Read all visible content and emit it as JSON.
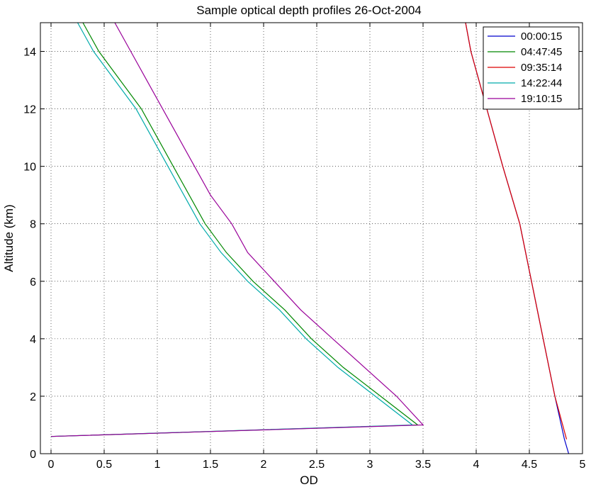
{
  "chart_data": {
    "type": "line",
    "title": "Sample optical depth profiles 26-Oct-2004",
    "xlabel": "OD",
    "ylabel": "Altitude (km)",
    "xlim": [
      -0.1,
      5
    ],
    "ylim": [
      0,
      15
    ],
    "x_ticks": [
      0,
      0.5,
      1,
      1.5,
      2,
      2.5,
      3,
      3.5,
      4,
      4.5,
      5
    ],
    "x_tick_labels": [
      "0",
      "0.5",
      "1",
      "1.5",
      "2",
      "2.5",
      "3",
      "3.5",
      "4",
      "4.5",
      "5"
    ],
    "y_ticks": [
      0,
      2,
      4,
      6,
      8,
      10,
      12,
      14
    ],
    "y_tick_labels": [
      "0",
      "2",
      "4",
      "6",
      "8",
      "10",
      "12",
      "14"
    ],
    "grid": true,
    "legend_position": "top-right",
    "series": [
      {
        "name": "00:00:15",
        "color": "#0000cc",
        "points": [
          [
            4.87,
            0.0
          ],
          [
            4.83,
            0.5
          ],
          [
            4.74,
            2.0
          ],
          [
            4.63,
            4.0
          ],
          [
            4.52,
            6.0
          ],
          [
            4.41,
            8.0
          ],
          [
            4.25,
            10.0
          ],
          [
            4.1,
            12.0
          ],
          [
            3.95,
            14.0
          ],
          [
            3.9,
            15.0
          ]
        ]
      },
      {
        "name": "04:47:45",
        "color": "#008800",
        "points": [
          [
            0.0,
            0.6
          ],
          [
            3.45,
            1.0
          ],
          [
            3.1,
            2.0
          ],
          [
            2.75,
            3.0
          ],
          [
            2.45,
            4.0
          ],
          [
            2.2,
            5.0
          ],
          [
            1.9,
            6.0
          ],
          [
            1.65,
            7.0
          ],
          [
            1.45,
            8.0
          ],
          [
            1.3,
            9.0
          ],
          [
            1.15,
            10.0
          ],
          [
            1.0,
            11.0
          ],
          [
            0.85,
            12.0
          ],
          [
            0.65,
            13.0
          ],
          [
            0.45,
            14.0
          ],
          [
            0.3,
            15.0
          ]
        ]
      },
      {
        "name": "09:35:14",
        "color": "#dd0000",
        "points": [
          [
            4.85,
            0.5
          ],
          [
            4.74,
            2.0
          ],
          [
            4.63,
            4.0
          ],
          [
            4.52,
            6.0
          ],
          [
            4.41,
            8.0
          ],
          [
            4.25,
            10.0
          ],
          [
            4.1,
            12.0
          ],
          [
            3.95,
            14.0
          ],
          [
            3.9,
            15.0
          ]
        ]
      },
      {
        "name": "14:22:44",
        "color": "#00aaaa",
        "points": [
          [
            0.0,
            0.6
          ],
          [
            3.4,
            1.0
          ],
          [
            3.05,
            2.0
          ],
          [
            2.7,
            3.0
          ],
          [
            2.4,
            4.0
          ],
          [
            2.15,
            5.0
          ],
          [
            1.85,
            6.0
          ],
          [
            1.6,
            7.0
          ],
          [
            1.4,
            8.0
          ],
          [
            1.25,
            9.0
          ],
          [
            1.1,
            10.0
          ],
          [
            0.95,
            11.0
          ],
          [
            0.8,
            12.0
          ],
          [
            0.6,
            13.0
          ],
          [
            0.4,
            14.0
          ],
          [
            0.25,
            15.0
          ]
        ]
      },
      {
        "name": "19:10:15",
        "color": "#990099",
        "points": [
          [
            0.0,
            0.6
          ],
          [
            3.5,
            1.0
          ],
          [
            3.25,
            2.0
          ],
          [
            2.95,
            3.0
          ],
          [
            2.65,
            4.0
          ],
          [
            2.35,
            5.0
          ],
          [
            2.1,
            6.0
          ],
          [
            1.85,
            7.0
          ],
          [
            1.7,
            8.0
          ],
          [
            1.5,
            9.0
          ],
          [
            1.35,
            10.0
          ],
          [
            1.2,
            11.0
          ],
          [
            1.05,
            12.0
          ],
          [
            0.9,
            13.0
          ],
          [
            0.75,
            14.0
          ],
          [
            0.6,
            15.0
          ]
        ]
      }
    ]
  }
}
